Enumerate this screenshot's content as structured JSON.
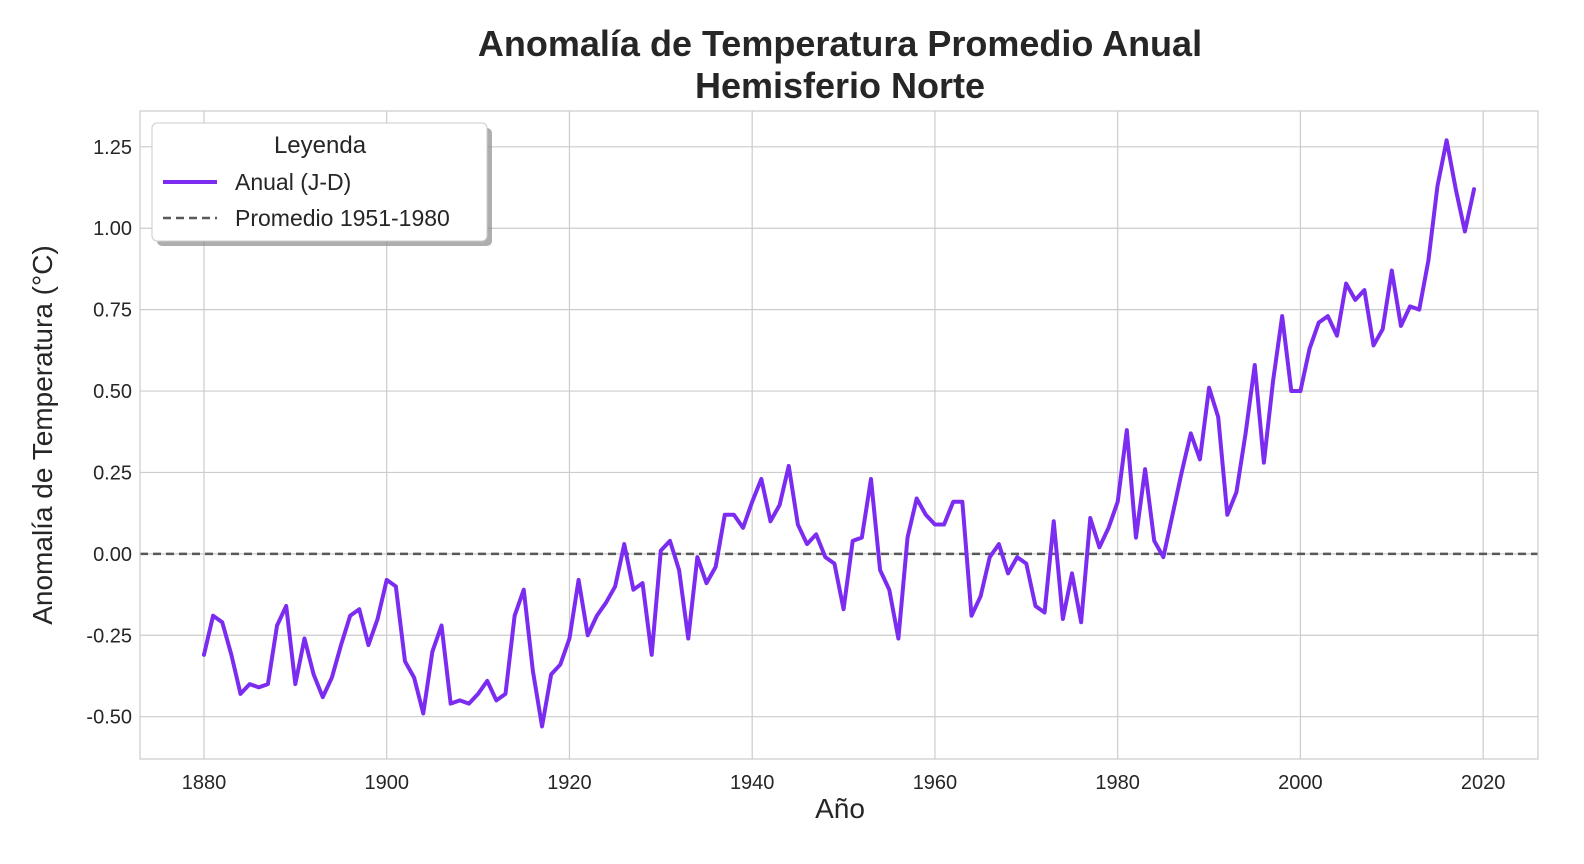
{
  "chart_data": {
    "type": "line",
    "title": [
      "Anomalía de Temperatura Promedio Anual",
      "Hemisferio Norte"
    ],
    "xlabel": "Año",
    "ylabel": "Anomalía de Temperatura (°C)",
    "xlim": [
      1873,
      2026
    ],
    "ylim": [
      -0.63,
      1.36
    ],
    "x_ticks": [
      1880,
      1900,
      1920,
      1940,
      1960,
      1980,
      2000,
      2020
    ],
    "x_tick_labels": [
      "1880",
      "1900",
      "1920",
      "1940",
      "1960",
      "1980",
      "2000",
      "2020"
    ],
    "y_ticks": [
      -0.5,
      -0.25,
      0.0,
      0.25,
      0.5,
      0.75,
      1.0,
      1.25
    ],
    "y_tick_labels": [
      "-0.50",
      "-0.25",
      "0.00",
      "0.25",
      "0.50",
      "0.75",
      "1.00",
      "1.25"
    ],
    "grid": true,
    "legend": {
      "title": "Leyenda",
      "position": "top-left"
    },
    "series": [
      {
        "name": "Anual (J-D)",
        "color": "#7b2cf0",
        "style": "solid",
        "x_start": 1880,
        "values": [
          -0.31,
          -0.19,
          -0.21,
          -0.31,
          -0.43,
          -0.4,
          -0.41,
          -0.4,
          -0.22,
          -0.16,
          -0.4,
          -0.26,
          -0.37,
          -0.44,
          -0.38,
          -0.28,
          -0.19,
          -0.17,
          -0.28,
          -0.2,
          -0.08,
          -0.1,
          -0.33,
          -0.38,
          -0.49,
          -0.3,
          -0.22,
          -0.46,
          -0.45,
          -0.46,
          -0.43,
          -0.39,
          -0.45,
          -0.43,
          -0.19,
          -0.11,
          -0.36,
          -0.53,
          -0.37,
          -0.34,
          -0.26,
          -0.08,
          -0.25,
          -0.19,
          -0.15,
          -0.1,
          0.03,
          -0.11,
          -0.09,
          -0.31,
          0.01,
          0.04,
          -0.05,
          -0.26,
          -0.01,
          -0.09,
          -0.04,
          0.12,
          0.12,
          0.08,
          0.16,
          0.23,
          0.1,
          0.15,
          0.27,
          0.09,
          0.03,
          0.06,
          -0.01,
          -0.03,
          -0.17,
          0.04,
          0.05,
          0.23,
          -0.05,
          -0.11,
          -0.26,
          0.05,
          0.17,
          0.12,
          0.09,
          0.09,
          0.16,
          0.16,
          -0.19,
          -0.13,
          -0.01,
          0.03,
          -0.06,
          -0.01,
          -0.03,
          -0.16,
          -0.18,
          0.1,
          -0.2,
          -0.06,
          -0.21,
          0.11,
          0.02,
          0.08,
          0.16,
          0.38,
          0.05,
          0.26,
          0.04,
          -0.01,
          0.12,
          0.25,
          0.37,
          0.29,
          0.51,
          0.42,
          0.12,
          0.19,
          0.37,
          0.58,
          0.28,
          0.53,
          0.73,
          0.5,
          0.5,
          0.63,
          0.71,
          0.73,
          0.67,
          0.83,
          0.78,
          0.81,
          0.64,
          0.69,
          0.87,
          0.7,
          0.76,
          0.75,
          0.9,
          1.13,
          1.27,
          1.12,
          0.99,
          1.12
        ]
      },
      {
        "name": "Promedio 1951-1980",
        "color": "#595959",
        "style": "dashed",
        "constant": 0.0
      }
    ]
  }
}
